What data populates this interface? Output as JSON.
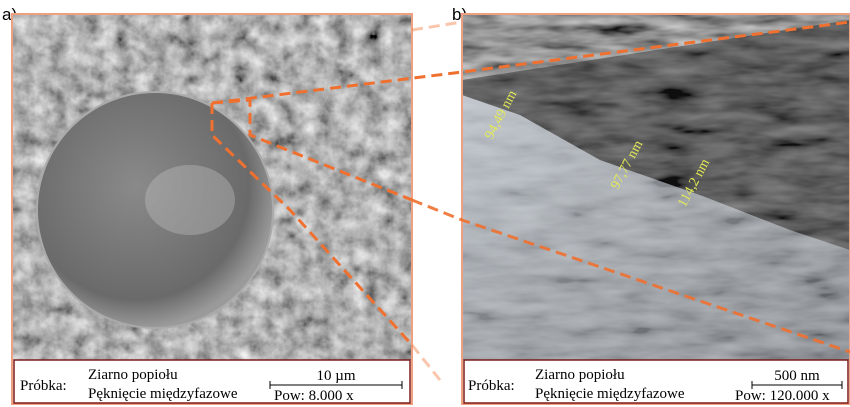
{
  "panels": [
    {
      "label": "a)",
      "measurements": [],
      "info": {
        "sample_label": "Próbka:",
        "line1": "Ziarno popiołu",
        "line2": "Pęknięcie międzyfazowe",
        "scale": "10 µm",
        "magnification": "Pow: 8.000 x"
      }
    },
    {
      "label": "b)",
      "measurements": [
        "94,49 nm",
        "97,77 nm",
        "114,2 nm"
      ],
      "info": {
        "sample_label": "Próbka:",
        "line1": "Ziarno popiołu",
        "line2": "Pęknięcie międzyfazowe",
        "scale": "500 nm",
        "magnification": "Pow: 120.000 x"
      }
    }
  ]
}
